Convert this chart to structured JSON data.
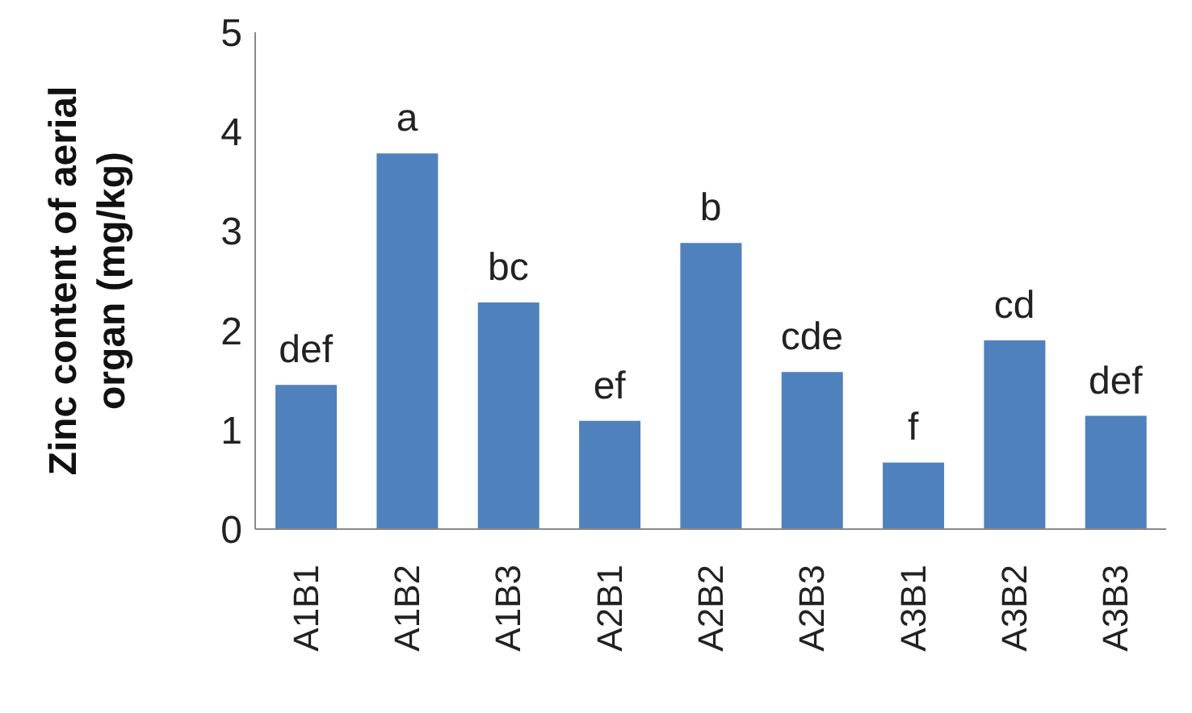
{
  "chart_data": {
    "type": "bar",
    "ylabel": "Zinc content of aerial organ (mg/kg)",
    "categories": [
      "A1B1",
      "A1B2",
      "A1B3",
      "A2B1",
      "A2B2",
      "A2B3",
      "A3B1",
      "A3B2",
      "A3B3"
    ],
    "values": [
      1.45,
      3.78,
      2.28,
      1.09,
      2.88,
      1.58,
      0.67,
      1.9,
      1.14
    ],
    "color": "#4f81bd",
    "ylim": [
      0,
      5
    ],
    "yticks": [
      0,
      1,
      2,
      3,
      4,
      5
    ],
    "grid": false,
    "annotations": [
      {
        "text": "def",
        "x": "A1B1",
        "y": 1.45
      },
      {
        "text": "a",
        "x": "A1B2",
        "y": 3.78
      },
      {
        "text": "bc",
        "x": "A1B3",
        "y": 2.28
      },
      {
        "text": "ef",
        "x": "A2B1",
        "y": 1.09
      },
      {
        "text": "b",
        "x": "A2B2",
        "y": 2.88
      },
      {
        "text": "cde",
        "x": "A2B3",
        "y": 1.58
      },
      {
        "text": "f",
        "x": "A3B1",
        "y": 0.67
      },
      {
        "text": "cd",
        "x": "A3B2",
        "y": 1.9
      },
      {
        "text": "def",
        "x": "A3B3",
        "y": 1.14
      }
    ]
  }
}
